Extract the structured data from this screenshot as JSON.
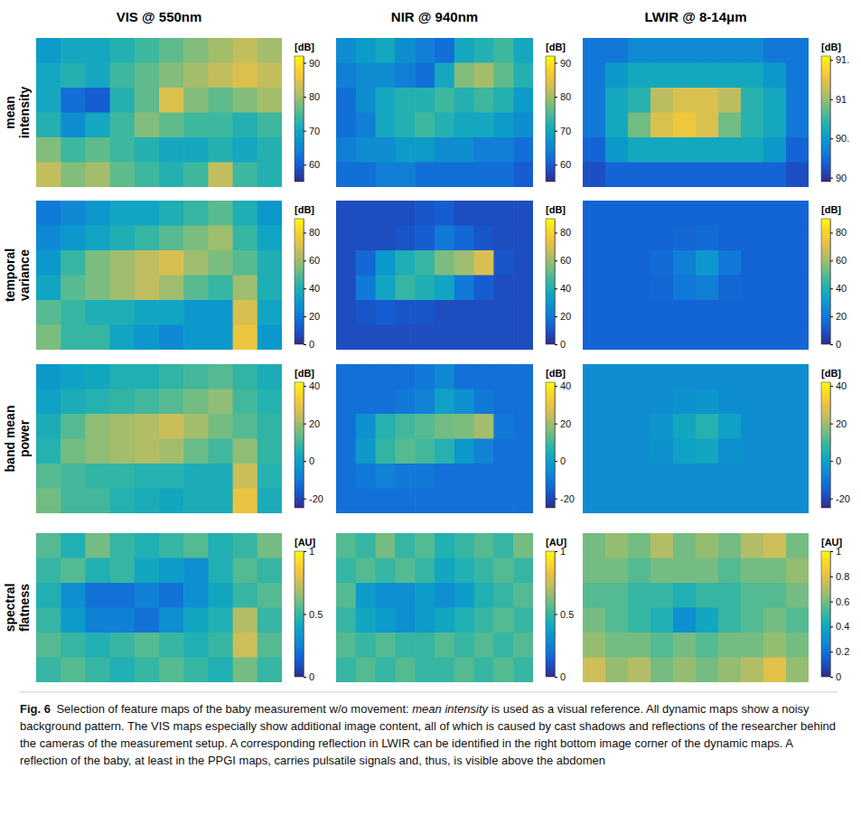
{
  "column_titles": [
    "VIS @ 550nm",
    "NIR @ 940nm",
    "LWIR @ 8-14μm"
  ],
  "row_titles": [
    "mean intensity",
    "temporal variance",
    "band mean power",
    "spectral flatness"
  ],
  "chart_data": [
    {
      "type": "heatmap",
      "colorbar_label": "[dB]",
      "colorbar_range": [
        55,
        92
      ],
      "colorbar_ticks": [
        60,
        70,
        80,
        90
      ],
      "cells": [
        [
          68,
          70,
          70,
          72,
          74,
          76,
          78,
          80,
          82,
          80
        ],
        [
          70,
          72,
          70,
          74,
          76,
          78,
          80,
          82,
          84,
          82
        ],
        [
          70,
          62,
          60,
          72,
          76,
          84,
          78,
          76,
          78,
          80
        ],
        [
          72,
          66,
          70,
          74,
          78,
          76,
          74,
          74,
          72,
          74
        ],
        [
          78,
          74,
          76,
          74,
          72,
          70,
          70,
          72,
          70,
          72
        ],
        [
          82,
          78,
          80,
          76,
          74,
          72,
          74,
          82,
          74,
          72
        ]
      ]
    },
    {
      "type": "heatmap",
      "colorbar_label": "[dB]",
      "colorbar_range": [
        55,
        92
      ],
      "colorbar_ticks": [
        60,
        70,
        80,
        90
      ],
      "cells": [
        [
          66,
          68,
          70,
          66,
          64,
          62,
          70,
          72,
          74,
          70
        ],
        [
          64,
          66,
          66,
          64,
          62,
          70,
          78,
          80,
          76,
          72
        ],
        [
          62,
          66,
          70,
          72,
          72,
          74,
          72,
          74,
          72,
          68
        ],
        [
          62,
          64,
          70,
          72,
          74,
          72,
          70,
          70,
          68,
          66
        ],
        [
          64,
          66,
          66,
          68,
          68,
          66,
          66,
          64,
          64,
          62
        ],
        [
          62,
          62,
          64,
          64,
          62,
          62,
          62,
          62,
          62,
          60
        ]
      ]
    },
    {
      "type": "heatmap",
      "colorbar_label": "[dB]",
      "colorbar_range": [
        89.95,
        91.55
      ],
      "colorbar_ticks": [
        {
          "value": 91.5,
          "label": "91."
        },
        91,
        {
          "value": 90.5,
          "label": "90."
        },
        90
      ],
      "cells": [
        [
          90.3,
          90.3,
          90.4,
          90.4,
          90.4,
          90.4,
          90.4,
          90.4,
          90.3,
          90.3
        ],
        [
          90.3,
          90.5,
          90.6,
          90.6,
          90.6,
          90.6,
          90.6,
          90.6,
          90.5,
          90.3
        ],
        [
          90.3,
          90.6,
          90.7,
          91.1,
          91.2,
          91.2,
          91.1,
          90.7,
          90.6,
          90.3
        ],
        [
          90.3,
          90.6,
          90.9,
          91.2,
          91.3,
          91.2,
          90.9,
          90.7,
          90.6,
          90.3
        ],
        [
          90.2,
          90.5,
          90.6,
          90.6,
          90.6,
          90.6,
          90.6,
          90.6,
          90.5,
          90.2
        ],
        [
          90.1,
          90.2,
          90.2,
          90.2,
          90.2,
          90.2,
          90.2,
          90.2,
          90.2,
          90.1
        ]
      ]
    },
    {
      "type": "heatmap",
      "colorbar_label": "[dB]",
      "colorbar_range": [
        0,
        90
      ],
      "colorbar_ticks": [
        0,
        20,
        40,
        60,
        80
      ],
      "cells": [
        [
          20,
          25,
          30,
          35,
          35,
          40,
          45,
          50,
          40,
          30
        ],
        [
          25,
          30,
          35,
          40,
          45,
          50,
          55,
          60,
          45,
          35
        ],
        [
          30,
          45,
          55,
          60,
          65,
          70,
          60,
          55,
          50,
          40
        ],
        [
          35,
          50,
          55,
          60,
          65,
          60,
          50,
          45,
          60,
          40
        ],
        [
          50,
          45,
          40,
          40,
          35,
          35,
          30,
          30,
          70,
          35
        ],
        [
          55,
          45,
          45,
          35,
          30,
          25,
          30,
          30,
          75,
          30
        ]
      ]
    },
    {
      "type": "heatmap",
      "colorbar_label": "[dB]",
      "colorbar_range": [
        0,
        90
      ],
      "colorbar_ticks": [
        0,
        20,
        40,
        60,
        80
      ],
      "cells": [
        [
          8,
          8,
          8,
          8,
          10,
          12,
          8,
          8,
          8,
          8
        ],
        [
          8,
          8,
          8,
          10,
          12,
          20,
          15,
          10,
          8,
          8
        ],
        [
          8,
          15,
          30,
          40,
          45,
          55,
          60,
          70,
          10,
          8
        ],
        [
          8,
          20,
          35,
          45,
          40,
          35,
          20,
          12,
          8,
          8
        ],
        [
          8,
          10,
          12,
          10,
          10,
          8,
          8,
          8,
          8,
          8
        ],
        [
          8,
          8,
          8,
          8,
          8,
          8,
          8,
          8,
          8,
          8
        ]
      ]
    },
    {
      "type": "heatmap",
      "colorbar_label": "[dB]",
      "colorbar_range": [
        0,
        90
      ],
      "colorbar_ticks": [
        0,
        20,
        40,
        60,
        80
      ],
      "cells": [
        [
          14,
          14,
          14,
          14,
          14,
          14,
          14,
          14,
          14,
          14
        ],
        [
          14,
          14,
          14,
          14,
          15,
          16,
          14,
          14,
          14,
          14
        ],
        [
          14,
          14,
          14,
          16,
          22,
          30,
          20,
          14,
          14,
          14
        ],
        [
          14,
          14,
          14,
          15,
          20,
          22,
          15,
          14,
          14,
          14
        ],
        [
          14,
          14,
          14,
          14,
          14,
          14,
          14,
          14,
          14,
          14
        ],
        [
          14,
          14,
          14,
          14,
          14,
          14,
          14,
          14,
          14,
          14
        ]
      ]
    },
    {
      "type": "heatmap",
      "colorbar_label": "[dB]",
      "colorbar_range": [
        -25,
        42
      ],
      "colorbar_ticks": [
        -20,
        0,
        20,
        40
      ],
      "cells": [
        [
          -2,
          0,
          2,
          5,
          5,
          8,
          10,
          12,
          8,
          4
        ],
        [
          0,
          4,
          6,
          8,
          10,
          12,
          15,
          18,
          10,
          6
        ],
        [
          4,
          12,
          18,
          20,
          22,
          25,
          20,
          15,
          12,
          8
        ],
        [
          6,
          15,
          18,
          20,
          22,
          20,
          14,
          10,
          18,
          8
        ],
        [
          12,
          10,
          8,
          8,
          6,
          6,
          4,
          4,
          25,
          6
        ],
        [
          15,
          10,
          10,
          6,
          4,
          2,
          4,
          4,
          30,
          4
        ]
      ]
    },
    {
      "type": "heatmap",
      "colorbar_label": "[dB]",
      "colorbar_range": [
        -25,
        42
      ],
      "colorbar_ticks": [
        -20,
        0,
        20,
        40
      ],
      "cells": [
        [
          -12,
          -12,
          -12,
          -12,
          -10,
          -6,
          -12,
          -12,
          -12,
          -12
        ],
        [
          -12,
          -12,
          -12,
          -10,
          -8,
          0,
          -4,
          -10,
          -12,
          -12
        ],
        [
          -12,
          -4,
          6,
          10,
          12,
          15,
          16,
          20,
          -10,
          -12
        ],
        [
          -12,
          -2,
          8,
          12,
          10,
          6,
          -2,
          -8,
          -12,
          -12
        ],
        [
          -12,
          -10,
          -8,
          -10,
          -10,
          -12,
          -12,
          -12,
          -12,
          -12
        ],
        [
          -12,
          -12,
          -12,
          -12,
          -12,
          -12,
          -12,
          -12,
          -12,
          -12
        ]
      ]
    },
    {
      "type": "heatmap",
      "colorbar_label": "[dB]",
      "colorbar_range": [
        -25,
        42
      ],
      "colorbar_ticks": [
        -20,
        0,
        20,
        40
      ],
      "cells": [
        [
          -5,
          -5,
          -5,
          -5,
          -5,
          -5,
          -5,
          -5,
          -5,
          -5
        ],
        [
          -5,
          -5,
          -5,
          -5,
          -4,
          -3,
          -5,
          -5,
          -5,
          -5
        ],
        [
          -5,
          -5,
          -5,
          -3,
          2,
          6,
          0,
          -5,
          -5,
          -5
        ],
        [
          -5,
          -5,
          -5,
          -4,
          0,
          2,
          -4,
          -5,
          -5,
          -5
        ],
        [
          -5,
          -5,
          -5,
          -5,
          -5,
          -5,
          -5,
          -5,
          -5,
          -5
        ],
        [
          -5,
          -5,
          -5,
          -5,
          -5,
          -5,
          -5,
          -5,
          -5,
          -5
        ]
      ]
    },
    {
      "type": "heatmap",
      "colorbar_label": "[AU]",
      "colorbar_range": [
        0,
        1
      ],
      "colorbar_ticks": [
        0,
        0.5,
        1
      ],
      "cells": [
        [
          0.55,
          0.45,
          0.6,
          0.5,
          0.45,
          0.5,
          0.55,
          0.45,
          0.5,
          0.6
        ],
        [
          0.5,
          0.55,
          0.45,
          0.5,
          0.4,
          0.35,
          0.3,
          0.45,
          0.55,
          0.5
        ],
        [
          0.45,
          0.3,
          0.2,
          0.2,
          0.25,
          0.2,
          0.3,
          0.4,
          0.5,
          0.55
        ],
        [
          0.5,
          0.35,
          0.25,
          0.25,
          0.2,
          0.3,
          0.4,
          0.45,
          0.7,
          0.5
        ],
        [
          0.55,
          0.5,
          0.45,
          0.5,
          0.55,
          0.5,
          0.45,
          0.5,
          0.75,
          0.55
        ],
        [
          0.5,
          0.55,
          0.5,
          0.45,
          0.5,
          0.55,
          0.5,
          0.45,
          0.6,
          0.5
        ]
      ]
    },
    {
      "type": "heatmap",
      "colorbar_label": "[AU]",
      "colorbar_range": [
        0,
        1
      ],
      "colorbar_ticks": [
        0,
        0.5,
        1
      ],
      "cells": [
        [
          0.55,
          0.5,
          0.6,
          0.5,
          0.55,
          0.45,
          0.5,
          0.55,
          0.5,
          0.6
        ],
        [
          0.5,
          0.55,
          0.5,
          0.55,
          0.5,
          0.4,
          0.45,
          0.5,
          0.55,
          0.5
        ],
        [
          0.55,
          0.35,
          0.3,
          0.3,
          0.35,
          0.3,
          0.35,
          0.45,
          0.5,
          0.55
        ],
        [
          0.5,
          0.4,
          0.35,
          0.3,
          0.35,
          0.4,
          0.45,
          0.5,
          0.55,
          0.5
        ],
        [
          0.55,
          0.5,
          0.55,
          0.5,
          0.5,
          0.55,
          0.5,
          0.55,
          0.5,
          0.55
        ],
        [
          0.5,
          0.55,
          0.5,
          0.55,
          0.5,
          0.5,
          0.55,
          0.5,
          0.55,
          0.5
        ]
      ]
    },
    {
      "type": "heatmap",
      "colorbar_label": "[AU]",
      "colorbar_range": [
        0,
        1
      ],
      "colorbar_ticks": [
        0,
        0.2,
        0.4,
        0.6,
        0.8,
        1
      ],
      "cells": [
        [
          0.6,
          0.65,
          0.6,
          0.7,
          0.6,
          0.65,
          0.6,
          0.7,
          0.75,
          0.6
        ],
        [
          0.6,
          0.6,
          0.55,
          0.6,
          0.6,
          0.6,
          0.55,
          0.6,
          0.6,
          0.65
        ],
        [
          0.55,
          0.55,
          0.5,
          0.5,
          0.45,
          0.5,
          0.5,
          0.55,
          0.55,
          0.6
        ],
        [
          0.6,
          0.55,
          0.5,
          0.45,
          0.3,
          0.4,
          0.5,
          0.55,
          0.6,
          0.55
        ],
        [
          0.65,
          0.6,
          0.6,
          0.55,
          0.6,
          0.55,
          0.6,
          0.6,
          0.65,
          0.6
        ],
        [
          0.75,
          0.65,
          0.7,
          0.6,
          0.65,
          0.6,
          0.65,
          0.7,
          0.8,
          0.65
        ]
      ]
    }
  ],
  "caption": {
    "label": "Fig. 6",
    "text": "Selection of feature maps of the baby measurement w/o movement:",
    "emphasis": "mean intensity",
    "text_after": "is used as a visual reference. All dynamic maps show a noisy background pattern. The VIS maps especially show additional image content, all of which is caused by cast shadows and reflections of the researcher behind the cameras of the measurement setup. A corresponding reflection in LWIR can be identified in the right bottom image corner of the dynamic maps. A reflection of the baby, at least in the PPGI maps, carries pulsatile signals and, thus, is visible above the abdomen"
  }
}
